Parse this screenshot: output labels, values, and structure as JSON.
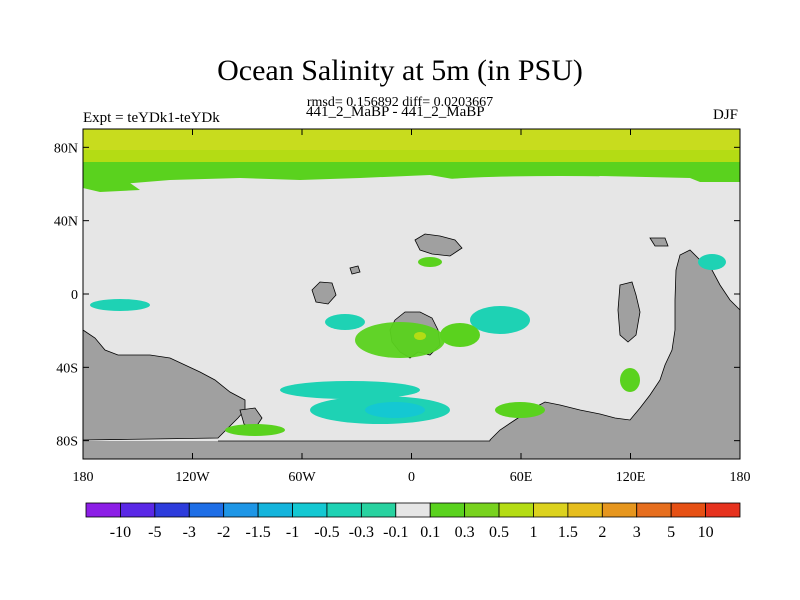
{
  "header": {
    "title": "Ocean Salinity at 5m (in PSU)",
    "subtitle": "rmsd= 0.156892 diff= 0.0203667",
    "left_label": "Expt = teYDk1-teYDk",
    "center_label": "441_2_MaBP - 441_2_MaBP",
    "right_label": "DJF"
  },
  "chart_data": {
    "type": "heatmap",
    "title": "Ocean Salinity at 5m (in PSU)",
    "x_ticks": [
      "180",
      "120W",
      "60W",
      "0",
      "60E",
      "120E",
      "180"
    ],
    "x_tick_values": [
      -180,
      -120,
      -60,
      0,
      60,
      120,
      180
    ],
    "y_ticks": [
      "80N",
      "40N",
      "0",
      "40S",
      "80S"
    ],
    "y_tick_values": [
      80,
      40,
      0,
      -40,
      -80
    ],
    "xlim": [
      -180,
      180
    ],
    "ylim": [
      -90,
      90
    ],
    "colorbar": {
      "labels": [
        "-10",
        "-5",
        "-3",
        "-2",
        "-1.5",
        "-1",
        "-0.5",
        "-0.3",
        "-0.1",
        "0.1",
        "0.3",
        "0.5",
        "1",
        "1.5",
        "2",
        "3",
        "5",
        "10"
      ],
      "colors": [
        "#8c1ee6",
        "#5a28e6",
        "#2d3cdc",
        "#1e6ee6",
        "#1e96e6",
        "#14b4dc",
        "#14c8d2",
        "#1ed2b4",
        "#28d2a0",
        "#e6e6e6",
        "#5ad21e",
        "#78d21e",
        "#b4dc14",
        "#dcd21e",
        "#e6be1e",
        "#e6961e",
        "#e66e1e",
        "#e65014",
        "#e6321e"
      ]
    },
    "regions": [
      {
        "band": "60N-90N",
        "value_range": [
          0.5,
          1.0
        ],
        "color": "#c8dc1e"
      },
      {
        "band": "50N-60N",
        "value_range": [
          0.1,
          0.5
        ],
        "color": "#5ad21e"
      }
    ],
    "land_color": "#a0a0a0",
    "neutral_color": "#e6e6e6"
  }
}
